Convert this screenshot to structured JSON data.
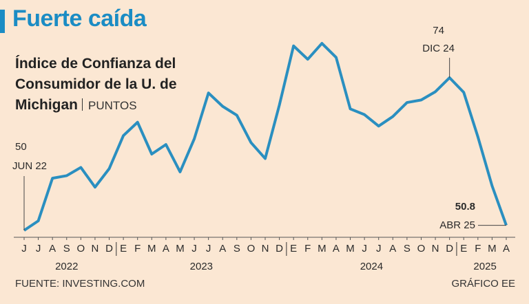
{
  "header": {
    "title": "Fuerte caída",
    "subtitle": "Índice de Confianza del Consumidor de la U. de Michigan",
    "unit": "PUNTOS"
  },
  "chart_data": {
    "type": "line",
    "categories": [
      "J",
      "J",
      "A",
      "S",
      "O",
      "N",
      "D",
      "E",
      "F",
      "M",
      "A",
      "M",
      "J",
      "J",
      "A",
      "S",
      "O",
      "N",
      "D",
      "E",
      "F",
      "M",
      "A",
      "M",
      "J",
      "J",
      "A",
      "S",
      "O",
      "N",
      "D",
      "E",
      "F",
      "M",
      "A"
    ],
    "years": [
      "2022",
      "2023",
      "2024",
      "2025"
    ],
    "series": [
      {
        "name": "Índice de Confianza del Consumidor",
        "color": "#2a8fc0",
        "values": [
          50.0,
          51.5,
          58.2,
          58.6,
          59.9,
          56.8,
          59.7,
          64.9,
          67.0,
          62.0,
          63.5,
          59.2,
          64.4,
          71.6,
          69.5,
          68.1,
          63.8,
          61.3,
          69.7,
          79.0,
          76.9,
          79.4,
          77.2,
          69.1,
          68.2,
          66.4,
          67.9,
          70.1,
          70.5,
          71.8,
          74.0,
          71.7,
          64.7,
          57.0,
          50.8
        ]
      }
    ],
    "ylim": [
      48,
      80
    ],
    "annotations": [
      "JUN 22",
      "DIC 24",
      "ABR 25"
    ]
  },
  "footer": {
    "source": "FUENTE: INVESTING.COM",
    "credit": "GRÁFICO EE"
  }
}
